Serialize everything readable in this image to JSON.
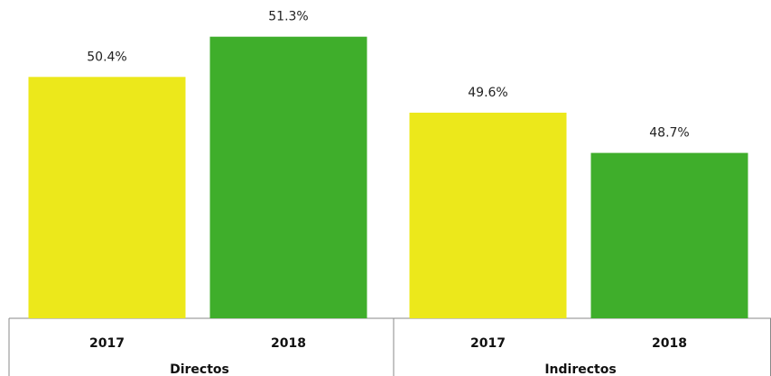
{
  "chart_data": {
    "type": "bar",
    "categories": [
      "2017",
      "2018",
      "2017",
      "2018"
    ],
    "groups": [
      "Directos",
      "Indirectos"
    ],
    "values": [
      50.4,
      51.3,
      49.6,
      48.7
    ],
    "value_labels": [
      "50.4%",
      "51.3%",
      "49.6%",
      "48.7%"
    ],
    "colors": [
      "#ece81b",
      "#3fae2b",
      "#ece81b",
      "#3fae2b"
    ],
    "ylim": [
      45,
      52
    ]
  }
}
